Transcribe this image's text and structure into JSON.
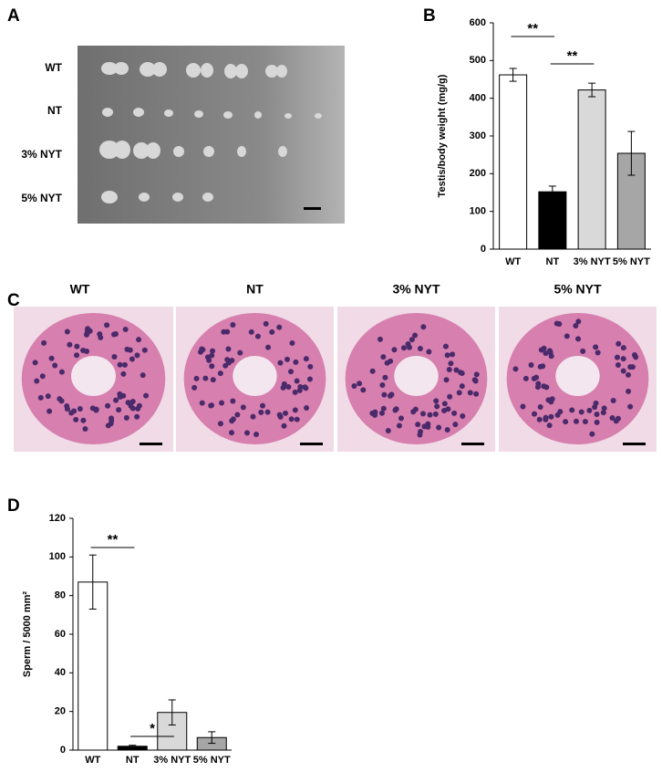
{
  "panel_a": {
    "letter": "A",
    "rows": [
      "WT",
      "NT",
      "3% NYT",
      "5% NYT"
    ]
  },
  "panel_c": {
    "letter": "C",
    "labels": [
      "WT",
      "NT",
      "3% NYT",
      "5% NYT"
    ]
  },
  "chart_data": [
    {
      "type": "bar",
      "letter": "B",
      "y_label": "Testis/body weight (mg/g)",
      "categories": [
        "WT",
        "NT",
        "3% NYT",
        "5% NYT"
      ],
      "values": [
        462,
        152,
        422,
        254
      ],
      "errors": [
        17,
        15,
        18,
        58
      ],
      "colors": [
        "#ffffff",
        "#000000",
        "#d9d9d9",
        "#a6a6a6"
      ],
      "ylim": [
        0,
        600
      ],
      "yticks": [
        0,
        100,
        200,
        300,
        400,
        500,
        600
      ],
      "annotations": [
        {
          "text": "**",
          "between": [
            "WT",
            "NT"
          ]
        },
        {
          "text": "**",
          "between": [
            "NT",
            "3% NYT"
          ]
        }
      ]
    },
    {
      "type": "bar",
      "letter": "D",
      "y_label": "Sperm / 5000 mm²",
      "categories": [
        "WT",
        "NT",
        "3% NYT",
        "5% NYT"
      ],
      "values": [
        87,
        2,
        19.5,
        6.5
      ],
      "errors": [
        14,
        0.5,
        6.5,
        3
      ],
      "colors": [
        "#ffffff",
        "#000000",
        "#d9d9d9",
        "#a6a6a6"
      ],
      "ylim": [
        0,
        120
      ],
      "yticks": [
        0,
        20,
        40,
        60,
        80,
        100,
        120
      ],
      "annotations": [
        {
          "text": "**",
          "between": [
            "WT",
            "NT"
          ]
        },
        {
          "text": "*",
          "between": [
            "NT",
            "3% NYT"
          ]
        }
      ]
    }
  ]
}
